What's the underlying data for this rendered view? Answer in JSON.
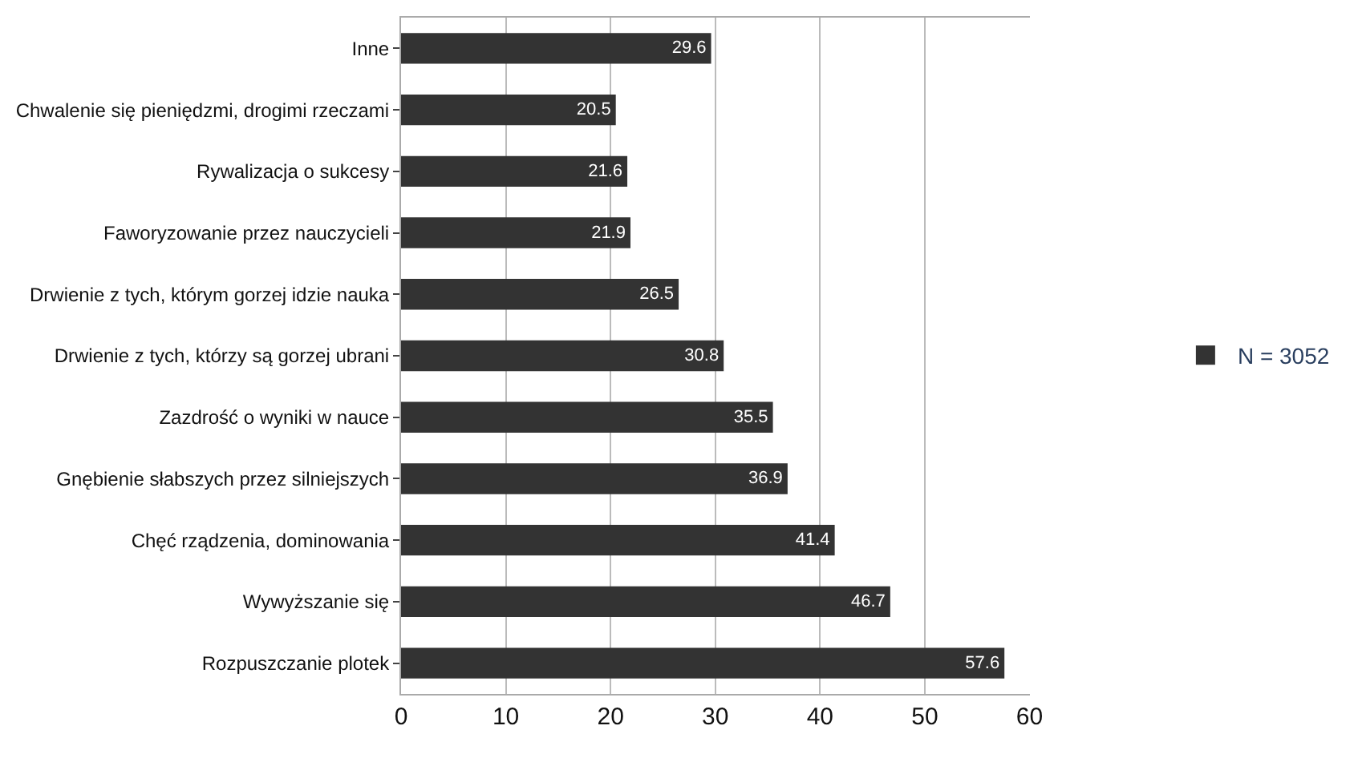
{
  "chart_data": {
    "type": "bar",
    "orientation": "horizontal",
    "categories": [
      "Inne",
      "Chwalenie się pieniędzmi, drogimi rzeczami",
      "Rywalizacja o sukcesy",
      "Faworyzowanie przez nauczycieli",
      "Drwienie z tych, którym gorzej idzie nauka",
      "Drwienie z tych, którzy są gorzej ubrani",
      "Zazdrość o wyniki w nauce",
      "Gnębienie słabszych przez silniejszych",
      "Chęć rządzenia, dominowania",
      "Wywyższanie się",
      "Rozpuszczanie plotek"
    ],
    "series": [
      {
        "name": "N = 3052",
        "color": "#333333",
        "values": [
          29.6,
          20.5,
          21.6,
          21.9,
          26.5,
          30.8,
          35.5,
          36.9,
          41.4,
          46.7,
          57.6
        ]
      }
    ],
    "xlim": [
      0,
      60
    ],
    "xticks": [
      0,
      10,
      20,
      30,
      40,
      50,
      60
    ],
    "grid": "x",
    "legend": "right",
    "data_labels": true
  }
}
